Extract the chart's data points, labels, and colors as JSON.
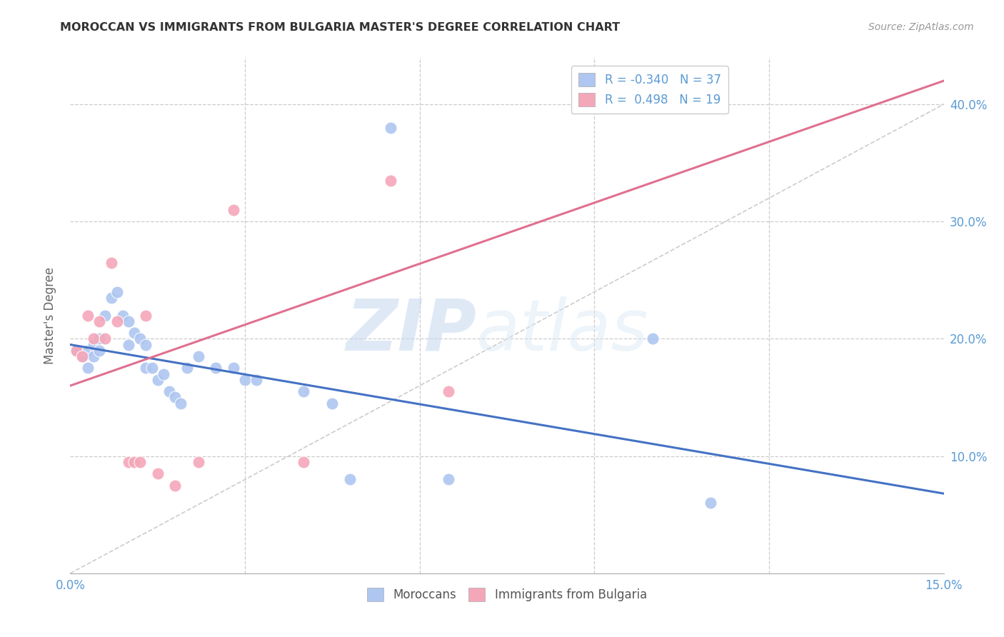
{
  "title": "MOROCCAN VS IMMIGRANTS FROM BULGARIA MASTER'S DEGREE CORRELATION CHART",
  "source": "Source: ZipAtlas.com",
  "ylabel": "Master's Degree",
  "xlim": [
    0.0,
    0.15
  ],
  "ylim": [
    0.0,
    0.44
  ],
  "moroccan_color": "#aec6f0",
  "bulgaria_color": "#f4a7b9",
  "moroccan_line_color": "#4472c4",
  "bulgaria_line_color": "#e07090",
  "moroccan_R": -0.34,
  "moroccan_N": 37,
  "bulgaria_R": 0.498,
  "bulgaria_N": 19,
  "moroccan_scatter": [
    [
      0.001,
      0.19
    ],
    [
      0.002,
      0.185
    ],
    [
      0.003,
      0.19
    ],
    [
      0.003,
      0.175
    ],
    [
      0.004,
      0.195
    ],
    [
      0.004,
      0.185
    ],
    [
      0.005,
      0.2
    ],
    [
      0.005,
      0.19
    ],
    [
      0.006,
      0.22
    ],
    [
      0.007,
      0.235
    ],
    [
      0.008,
      0.24
    ],
    [
      0.009,
      0.22
    ],
    [
      0.01,
      0.215
    ],
    [
      0.01,
      0.195
    ],
    [
      0.011,
      0.205
    ],
    [
      0.012,
      0.2
    ],
    [
      0.013,
      0.195
    ],
    [
      0.013,
      0.175
    ],
    [
      0.014,
      0.175
    ],
    [
      0.015,
      0.165
    ],
    [
      0.016,
      0.17
    ],
    [
      0.017,
      0.155
    ],
    [
      0.018,
      0.15
    ],
    [
      0.019,
      0.145
    ],
    [
      0.02,
      0.175
    ],
    [
      0.022,
      0.185
    ],
    [
      0.025,
      0.175
    ],
    [
      0.028,
      0.175
    ],
    [
      0.03,
      0.165
    ],
    [
      0.032,
      0.165
    ],
    [
      0.04,
      0.155
    ],
    [
      0.045,
      0.145
    ],
    [
      0.048,
      0.08
    ],
    [
      0.055,
      0.38
    ],
    [
      0.065,
      0.08
    ],
    [
      0.1,
      0.2
    ],
    [
      0.11,
      0.06
    ]
  ],
  "bulgaria_scatter": [
    [
      0.001,
      0.19
    ],
    [
      0.002,
      0.185
    ],
    [
      0.003,
      0.22
    ],
    [
      0.004,
      0.2
    ],
    [
      0.005,
      0.215
    ],
    [
      0.006,
      0.2
    ],
    [
      0.007,
      0.265
    ],
    [
      0.008,
      0.215
    ],
    [
      0.01,
      0.095
    ],
    [
      0.011,
      0.095
    ],
    [
      0.012,
      0.095
    ],
    [
      0.013,
      0.22
    ],
    [
      0.015,
      0.085
    ],
    [
      0.018,
      0.075
    ],
    [
      0.022,
      0.095
    ],
    [
      0.028,
      0.31
    ],
    [
      0.04,
      0.095
    ],
    [
      0.055,
      0.335
    ],
    [
      0.065,
      0.155
    ]
  ],
  "moroccan_line_x": [
    0.0,
    0.15
  ],
  "moroccan_line_y": [
    0.195,
    0.068
  ],
  "bulgaria_line_x": [
    0.0,
    0.15
  ],
  "bulgaria_line_y": [
    0.16,
    0.42
  ],
  "dashed_line_x": [
    0.0,
    0.165
  ],
  "dashed_line_y": [
    0.0,
    0.44
  ],
  "watermark_zip": "ZIP",
  "watermark_atlas": "atlas",
  "background_color": "#ffffff",
  "grid_color": "#cccccc",
  "tick_color": "#5b9bd5",
  "label_color": "#666666"
}
